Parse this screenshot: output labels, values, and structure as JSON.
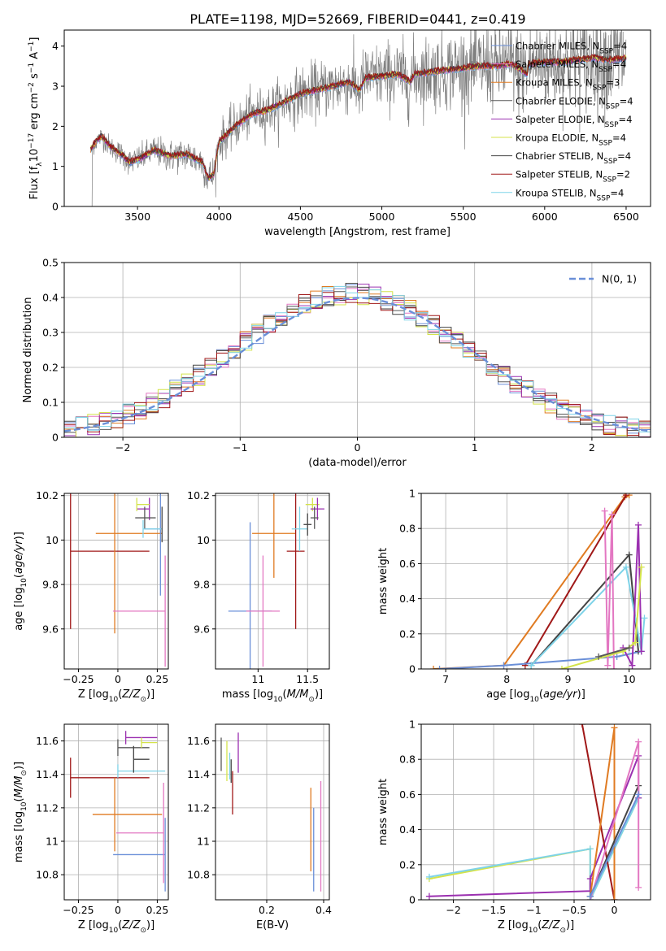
{
  "figure_title": "PLATE=1198, MJD=52669, FIBERID=0441, z=0.419",
  "colors": {
    "Chabrier MILES": "#6a8fd8",
    "Salpeter MILES": "#e377c2",
    "Kroupa MILES": "#e07b22",
    "Chabrier ELODIE": "#595959",
    "Salpeter ELODIE": "#9b30b0",
    "Kroupa ELODIE": "#d4e34a",
    "Chabrier STELIB": "#444444",
    "Salpeter STELIB": "#a01818",
    "Kroupa STELIB": "#7fd3e8"
  },
  "chart_data": [
    {
      "id": "spectrum",
      "type": "line",
      "title": "PLATE=1198, MJD=52669, FIBERID=0441, z=0.419",
      "xlabel": "wavelength [Angstrom, rest frame]",
      "ylabel": "Flux [f_λ 10^-17 erg cm^-2 s^-1 A^-1]",
      "xlim": [
        3050,
        6650
      ],
      "ylim": [
        0,
        4.4
      ],
      "xticks": [
        3500,
        4000,
        4500,
        5000,
        5500,
        6000,
        6500
      ],
      "yticks": [
        0,
        1,
        2,
        3,
        4
      ],
      "grid": false,
      "legend_position": "right",
      "legend": [
        {
          "label": "Chabrier MILES, N",
          "sub": "SSP",
          "tail": "=4"
        },
        {
          "label": "Salpeter MILES, N",
          "sub": "SSP",
          "tail": "=4"
        },
        {
          "label": "Kroupa MILES, N",
          "sub": "SSP",
          "tail": "=3"
        },
        {
          "label": "Chabrier ELODIE, N",
          "sub": "SSP",
          "tail": "=4"
        },
        {
          "label": "Salpeter ELODIE, N",
          "sub": "SSP",
          "tail": "=4"
        },
        {
          "label": "Kroupa ELODIE, N",
          "sub": "SSP",
          "tail": "=4"
        },
        {
          "label": "Chabrier STELIB, N",
          "sub": "SSP",
          "tail": "=4"
        },
        {
          "label": "Salpeter STELIB, N",
          "sub": "SSP",
          "tail": "=2"
        },
        {
          "label": "Kroupa STELIB, N",
          "sub": "SSP",
          "tail": "=4"
        }
      ],
      "data_color": "#808080",
      "model_anchors": {
        "x": [
          3210,
          3240,
          3280,
          3330,
          3400,
          3450,
          3520,
          3600,
          3700,
          3800,
          3850,
          3900,
          3933,
          3968,
          4000,
          4050,
          4100,
          4200,
          4300,
          4400,
          4500,
          4600,
          4700,
          4800,
          4862,
          4900,
          5000,
          5100,
          5175,
          5200,
          5300,
          5400,
          5500,
          5600,
          5700,
          5800,
          5893,
          5900,
          6000,
          6100,
          6200,
          6300,
          6400,
          6500
        ],
        "y": [
          1.4,
          1.6,
          1.75,
          1.5,
          1.3,
          1.1,
          1.2,
          1.4,
          1.25,
          1.3,
          1.2,
          1.1,
          0.7,
          0.8,
          1.6,
          1.8,
          2.0,
          2.3,
          2.4,
          2.6,
          2.8,
          2.9,
          3.0,
          3.1,
          2.9,
          3.2,
          3.25,
          3.3,
          3.1,
          3.3,
          3.35,
          3.4,
          3.45,
          3.5,
          3.5,
          3.55,
          3.3,
          3.55,
          3.6,
          3.6,
          3.65,
          3.7,
          3.65,
          3.7
        ]
      }
    },
    {
      "id": "residuals",
      "type": "step",
      "xlabel": "(data-model)/error",
      "ylabel": "Normed distribution",
      "xlim": [
        -2.5,
        2.5
      ],
      "ylim": [
        0,
        0.5
      ],
      "xticks": [
        -2,
        -1,
        0,
        1,
        2
      ],
      "yticks": [
        0.0,
        0.1,
        0.2,
        0.3,
        0.4,
        0.5
      ],
      "grid": true,
      "legend_position": "top-right",
      "gaussian": {
        "label": "N(0, 1)",
        "mean": 0,
        "sigma": 1,
        "color": "#6a8fd8"
      },
      "bin_width": 0.1
    },
    {
      "id": "age-vs-Z",
      "type": "errorbar",
      "xlabel": "Z [log10(Z/Z⊙)]",
      "ylabel": "age [log10(age/yr)]",
      "xlim": [
        -0.34,
        0.32
      ],
      "ylim": [
        9.42,
        10.21
      ],
      "xticks": [
        -0.25,
        0.0,
        0.25
      ],
      "yticks": [
        9.6,
        9.8,
        10.0,
        10.2
      ],
      "grid": true,
      "points": [
        {
          "series": "Salpeter STELIB",
          "x": -0.3,
          "xerr_lo": 0.0,
          "xerr_hi": 0.5,
          "y": 9.95,
          "yerr": 0.35
        },
        {
          "series": "Kroupa MILES",
          "x": -0.02,
          "xerr_lo": 0.12,
          "xerr_hi": 0.3,
          "y": 10.03,
          "yerr": 0.45
        },
        {
          "series": "Salpeter MILES",
          "x": 0.3,
          "xerr_lo": 0.33,
          "xerr_hi": 0.0,
          "y": 9.68,
          "yerr": 0.25
        },
        {
          "series": "Chabrier MILES",
          "x": 0.27,
          "xerr_lo": 0.1,
          "xerr_hi": 0.0,
          "y": 10.05,
          "yerr": 0.3
        },
        {
          "series": "Salpeter ELODIE",
          "x": 0.2,
          "xerr_lo": 0.08,
          "xerr_hi": 0.0,
          "y": 10.14,
          "yerr": 0.05
        },
        {
          "series": "Kroupa ELODIE",
          "x": 0.12,
          "xerr_lo": 0.0,
          "xerr_hi": 0.08,
          "y": 10.16,
          "yerr": 0.03
        },
        {
          "series": "Chabrier ELODIE",
          "x": 0.17,
          "xerr_lo": 0.06,
          "xerr_hi": 0.07,
          "y": 10.1,
          "yerr": 0.05
        },
        {
          "series": "Kroupa STELIB",
          "x": 0.16,
          "xerr_lo": 0.0,
          "xerr_hi": 0.12,
          "y": 10.05,
          "yerr": 0.04
        },
        {
          "series": "Chabrier STELIB",
          "x": 0.28,
          "xerr_lo": 0.0,
          "xerr_hi": 0.0,
          "y": 10.07,
          "yerr": 0.08
        }
      ]
    },
    {
      "id": "age-vs-mass",
      "type": "errorbar",
      "xlabel": "mass [log10(M/M⊙)]",
      "ylabel": "",
      "xlim": [
        10.57,
        11.72
      ],
      "ylim": [
        9.42,
        10.21
      ],
      "xticks": [
        11.0,
        11.5
      ],
      "yticks": [
        9.6,
        9.8,
        10.0,
        10.2
      ],
      "grid": true,
      "points": [
        {
          "series": "Chabrier MILES",
          "x": 10.92,
          "xerr": 0.22,
          "y": 9.68,
          "yerr": 0.4
        },
        {
          "series": "Salpeter MILES",
          "x": 11.05,
          "xerr": 0.17,
          "y": 9.68,
          "yerr": 0.25
        },
        {
          "series": "Kroupa MILES",
          "x": 11.16,
          "xerr": 0.22,
          "y": 10.03,
          "yerr": 0.2
        },
        {
          "series": "Salpeter STELIB",
          "x": 11.38,
          "xerr": 0.09,
          "y": 9.95,
          "yerr": 0.35
        },
        {
          "series": "Kroupa STELIB",
          "x": 11.42,
          "xerr": 0.08,
          "y": 10.05,
          "yerr": 0.1
        },
        {
          "series": "Kroupa ELODIE",
          "x": 11.55,
          "xerr": 0.07,
          "y": 10.16,
          "yerr": 0.03
        },
        {
          "series": "Salpeter ELODIE",
          "x": 11.6,
          "xerr": 0.07,
          "y": 10.14,
          "yerr": 0.05
        },
        {
          "series": "Chabrier ELODIE",
          "x": 11.57,
          "xerr": 0.04,
          "y": 10.1,
          "yerr": 0.05
        },
        {
          "series": "Chabrier STELIB",
          "x": 11.5,
          "xerr": 0.04,
          "y": 10.07,
          "yerr": 0.05
        }
      ]
    },
    {
      "id": "massweight-vs-age",
      "type": "line",
      "xlabel": "age [log10(age/yr)]",
      "ylabel": "mass weight",
      "xlim": [
        6.6,
        10.35
      ],
      "ylim": [
        0,
        1.0
      ],
      "xticks": [
        7,
        8,
        9,
        10
      ],
      "yticks": [
        0.0,
        0.2,
        0.4,
        0.6,
        0.8,
        1.0
      ],
      "grid": true,
      "series": [
        {
          "name": "Kroupa MILES",
          "x": [
            6.8,
            7.95,
            9.93,
            10.0
          ],
          "y": [
            0.0,
            0.02,
            0.98,
            0.99
          ]
        },
        {
          "name": "Salpeter STELIB",
          "x": [
            8.3,
            9.95
          ],
          "y": [
            0.02,
            0.99
          ]
        },
        {
          "name": "Chabrier MILES",
          "x": [
            6.9,
            7.95,
            9.8,
            10.2
          ],
          "y": [
            0.0,
            0.02,
            0.07,
            0.1
          ]
        },
        {
          "name": "Chabrier STELIB",
          "x": [
            8.4,
            10.0,
            10.15
          ],
          "y": [
            0.02,
            0.65,
            0.1
          ]
        },
        {
          "name": "Kroupa STELIB",
          "x": [
            8.4,
            9.95,
            10.2,
            10.25
          ],
          "y": [
            0.02,
            0.58,
            0.1,
            0.29
          ]
        },
        {
          "name": "Salpeter ELODIE",
          "x": [
            9.9,
            10.05,
            10.15,
            10.2
          ],
          "y": [
            0.12,
            0.02,
            0.82,
            0.1
          ]
        },
        {
          "name": "Salpeter MILES",
          "x": [
            9.6,
            9.65,
            9.72,
            9.75
          ],
          "y": [
            0.9,
            0.02,
            0.88,
            0.0
          ]
        },
        {
          "name": "Kroupa ELODIE",
          "x": [
            8.9,
            9.9,
            10.1,
            10.2
          ],
          "y": [
            0.0,
            0.1,
            0.15,
            0.58
          ]
        },
        {
          "name": "Chabrier ELODIE",
          "x": [
            9.5,
            10.0
          ],
          "y": [
            0.07,
            0.12
          ]
        }
      ]
    },
    {
      "id": "mass-vs-Z",
      "type": "errorbar",
      "xlabel": "Z [log10(Z/Z⊙)]",
      "ylabel": "mass [log10(M/M⊙)]",
      "xlim": [
        -0.34,
        0.32
      ],
      "ylim": [
        10.65,
        11.7
      ],
      "xticks": [
        -0.25,
        0.0,
        0.25
      ],
      "yticks": [
        10.8,
        11.0,
        11.2,
        11.4,
        11.6
      ],
      "grid": true,
      "points": [
        {
          "series": "Salpeter STELIB",
          "x": -0.3,
          "xerr_lo": 0.0,
          "xerr_hi": 0.5,
          "y": 11.38,
          "yerr": 0.12
        },
        {
          "series": "Kroupa MILES",
          "x": -0.02,
          "xerr_lo": 0.14,
          "xerr_hi": 0.3,
          "y": 11.16,
          "yerr": 0.22
        },
        {
          "series": "Chabrier MILES",
          "x": 0.3,
          "xerr_lo": 0.33,
          "xerr_hi": 0.0,
          "y": 10.92,
          "yerr": 0.22
        },
        {
          "series": "Salpeter MILES",
          "x": 0.29,
          "xerr_lo": 0.3,
          "xerr_hi": 0.0,
          "y": 11.05,
          "yerr": 0.3
        },
        {
          "series": "Kroupa STELIB",
          "x": 0.0,
          "xerr_lo": 0.0,
          "xerr_hi": 0.3,
          "y": 11.42,
          "yerr": 0.04
        },
        {
          "series": "Chabrier ELODIE",
          "x": 0.0,
          "xerr_lo": 0.0,
          "xerr_hi": 0.2,
          "y": 11.56,
          "yerr": 0.05
        },
        {
          "series": "Salpeter ELODIE",
          "x": 0.05,
          "xerr_lo": 0.0,
          "xerr_hi": 0.2,
          "y": 11.62,
          "yerr": 0.04
        },
        {
          "series": "Kroupa ELODIE",
          "x": 0.15,
          "xerr_lo": 0.0,
          "xerr_hi": 0.1,
          "y": 11.59,
          "yerr": 0.03
        },
        {
          "series": "Chabrier STELIB",
          "x": 0.1,
          "xerr_lo": 0.0,
          "xerr_hi": 0.1,
          "y": 11.49,
          "yerr": 0.08
        }
      ]
    },
    {
      "id": "mass-vs-EBV",
      "type": "errorbar",
      "xlabel": "E(B-V)",
      "ylabel": "",
      "xlim": [
        0.02,
        0.42
      ],
      "ylim": [
        10.65,
        11.7
      ],
      "xticks": [
        0.2,
        0.4
      ],
      "yticks": [
        10.8,
        11.0,
        11.2,
        11.4,
        11.6
      ],
      "grid": true,
      "points": [
        {
          "series": "Chabrier ELODIE",
          "x": 0.04,
          "y": 11.52,
          "yerr": 0.1
        },
        {
          "series": "Kroupa ELODIE",
          "x": 0.06,
          "y": 11.48,
          "yerr": 0.12
        },
        {
          "series": "Kroupa STELIB",
          "x": 0.07,
          "y": 11.45,
          "yerr": 0.08
        },
        {
          "series": "Chabrier STELIB",
          "x": 0.075,
          "y": 11.42,
          "yerr": 0.07
        },
        {
          "series": "Salpeter STELIB",
          "x": 0.08,
          "y": 11.29,
          "yerr": 0.13
        },
        {
          "series": "Salpeter ELODIE",
          "x": 0.1,
          "y": 11.53,
          "yerr": 0.12
        },
        {
          "series": "Kroupa MILES",
          "x": 0.355,
          "y": 11.07,
          "yerr": 0.25
        },
        {
          "series": "Chabrier MILES",
          "x": 0.365,
          "y": 10.95,
          "yerr": 0.25
        },
        {
          "series": "Salpeter MILES",
          "x": 0.39,
          "y": 11.03,
          "yerr": 0.33
        }
      ]
    },
    {
      "id": "massweight-vs-Z",
      "type": "line",
      "xlabel": "Z [log10(Z/Z⊙)]",
      "ylabel": "mass weight",
      "xlim": [
        -2.4,
        0.45
      ],
      "ylim": [
        0,
        1.0
      ],
      "xticks": [
        -2.0,
        -1.5,
        -1.0,
        -0.5,
        0.0
      ],
      "yticks": [
        0.0,
        0.2,
        0.4,
        0.6,
        0.8,
        1.0
      ],
      "grid": true,
      "series": [
        {
          "name": "Kroupa ELODIE",
          "x": [
            -2.3,
            -0.3,
            -0.3,
            0.3
          ],
          "y": [
            0.12,
            0.29,
            0.0,
            0.58
          ]
        },
        {
          "name": "Kroupa STELIB",
          "x": [
            -2.3,
            -0.3,
            -0.3,
            0.3
          ],
          "y": [
            0.13,
            0.29,
            0.0,
            0.58
          ]
        },
        {
          "name": "Salpeter ELODIE",
          "x": [
            -2.3,
            -0.3,
            -0.3,
            0.3,
            0.3
          ],
          "y": [
            0.02,
            0.05,
            0.12,
            0.82,
            0.58
          ]
        },
        {
          "name": "Salpeter STELIB",
          "x": [
            -0.4,
            0.0
          ],
          "y": [
            1.0,
            0.0
          ]
        },
        {
          "name": "Kroupa MILES",
          "x": [
            -0.3,
            0.0,
            0.0
          ],
          "y": [
            0.02,
            0.98,
            0.0
          ]
        },
        {
          "name": "Chabrier STELIB",
          "x": [
            -0.3,
            0.3
          ],
          "y": [
            0.02,
            0.65
          ]
        },
        {
          "name": "Salpeter MILES",
          "x": [
            -0.3,
            0.3,
            0.3
          ],
          "y": [
            0.0,
            0.9,
            0.07
          ]
        },
        {
          "name": "Chabrier MILES",
          "x": [
            -0.3,
            0.3
          ],
          "y": [
            0.02,
            0.6
          ]
        }
      ]
    }
  ]
}
